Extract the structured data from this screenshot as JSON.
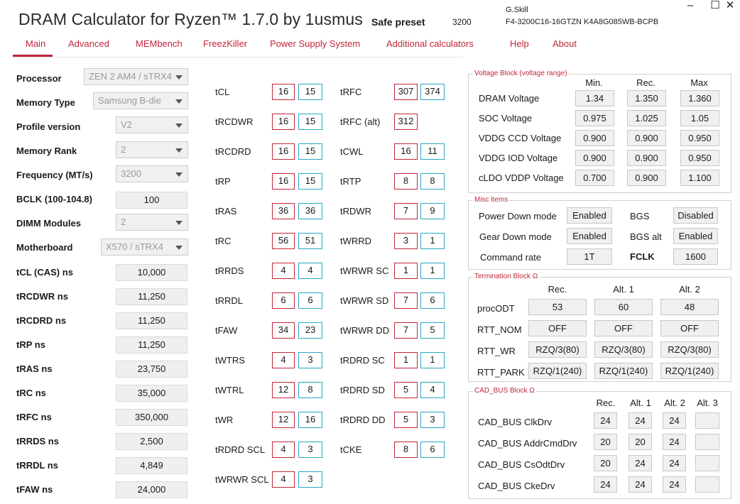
{
  "header": {
    "title": "DRAM Calculator for Ryzen™ 1.7.0 by 1usmus",
    "safe_label": "Safe preset",
    "safe_value": "3200",
    "brand": "G.Skill",
    "part": "F4-3200C16-16GTZN K4A8G085WB-BCPB",
    "minimize": "–",
    "maximize": "☐",
    "close": "✕"
  },
  "menu": [
    "Main",
    "Advanced",
    "MEMbench",
    "FreezKiller",
    "Power Supply System",
    "Additional calculators",
    "Help",
    "About"
  ],
  "left": {
    "processor": {
      "label": "Processor",
      "value": "ZEN 2 AM4 / sTRX4"
    },
    "memory_type": {
      "label": "Memory Type",
      "value": "Samsung B-die"
    },
    "profile": {
      "label": "Profile version",
      "value": "V2"
    },
    "rank": {
      "label": "Memory Rank",
      "value": "2"
    },
    "frequency": {
      "label": "Frequency (MT/s)",
      "value": "3200"
    },
    "bclk": {
      "label": "BCLK (100-104.8)",
      "value": "100"
    },
    "dimm": {
      "label": "DIMM Modules",
      "value": "2"
    },
    "motherboard": {
      "label": "Motherboard",
      "value": "X570 / sTRX4"
    },
    "ns": [
      {
        "label": "tCL (CAS) ns",
        "value": "10,000"
      },
      {
        "label": "tRCDWR ns",
        "value": "11,250"
      },
      {
        "label": "tRCDRD ns",
        "value": "11,250"
      },
      {
        "label": "tRP ns",
        "value": "11,250"
      },
      {
        "label": "tRAS ns",
        "value": "23,750"
      },
      {
        "label": "tRC ns",
        "value": "35,000"
      },
      {
        "label": "tRFC ns",
        "value": "350,000"
      },
      {
        "label": "tRRDS ns",
        "value": "2,500"
      },
      {
        "label": "tRRDL ns",
        "value": "4,849"
      },
      {
        "label": "tFAW ns",
        "value": "24,000"
      }
    ]
  },
  "timings_left": [
    {
      "label": "tCL",
      "a": "16",
      "b": "15"
    },
    {
      "label": "tRCDWR",
      "a": "16",
      "b": "15"
    },
    {
      "label": "tRCDRD",
      "a": "16",
      "b": "15"
    },
    {
      "label": "tRP",
      "a": "16",
      "b": "15"
    },
    {
      "label": "tRAS",
      "a": "36",
      "b": "36"
    },
    {
      "label": "tRC",
      "a": "56",
      "b": "51"
    },
    {
      "label": "tRRDS",
      "a": "4",
      "b": "4"
    },
    {
      "label": "tRRDL",
      "a": "6",
      "b": "6"
    },
    {
      "label": "tFAW",
      "a": "34",
      "b": "23"
    },
    {
      "label": "tWTRS",
      "a": "4",
      "b": "3"
    },
    {
      "label": "tWTRL",
      "a": "12",
      "b": "8"
    },
    {
      "label": "tWR",
      "a": "12",
      "b": "16"
    },
    {
      "label": "tRDRD SCL",
      "a": "4",
      "b": "3"
    },
    {
      "label": "tWRWR SCL",
      "a": "4",
      "b": "3"
    }
  ],
  "timings_right": [
    {
      "label": "tRFC",
      "a": "307",
      "b": "374"
    },
    {
      "label": "tRFC (alt)",
      "a": "312",
      "b": ""
    },
    {
      "label": "tCWL",
      "a": "16",
      "b": "11"
    },
    {
      "label": "tRTP",
      "a": "8",
      "b": "8"
    },
    {
      "label": "tRDWR",
      "a": "7",
      "b": "9"
    },
    {
      "label": "tWRRD",
      "a": "3",
      "b": "1"
    },
    {
      "label": "tWRWR SC",
      "a": "1",
      "b": "1"
    },
    {
      "label": "tWRWR SD",
      "a": "7",
      "b": "6"
    },
    {
      "label": "tWRWR DD",
      "a": "7",
      "b": "5"
    },
    {
      "label": "tRDRD SC",
      "a": "1",
      "b": "1"
    },
    {
      "label": "tRDRD SD",
      "a": "5",
      "b": "4"
    },
    {
      "label": "tRDRD DD",
      "a": "5",
      "b": "3"
    },
    {
      "label": "tCKE",
      "a": "8",
      "b": "6"
    }
  ],
  "voltage": {
    "title": "Voltage Block (voltage range)",
    "headers": [
      "Min.",
      "Rec.",
      "Max"
    ],
    "rows": [
      {
        "label": "DRAM Voltage",
        "min": "1.34",
        "rec": "1.350",
        "max": "1.360"
      },
      {
        "label": "SOC Voltage",
        "min": "0.975",
        "rec": "1.025",
        "max": "1.05"
      },
      {
        "label": "VDDG  CCD Voltage",
        "min": "0.900",
        "rec": "0.900",
        "max": "0.950"
      },
      {
        "label": "VDDG  IOD Voltage",
        "min": "0.900",
        "rec": "0.900",
        "max": "0.950"
      },
      {
        "label": "cLDO VDDP Voltage",
        "min": "0.700",
        "rec": "0.900",
        "max": "1.100"
      }
    ]
  },
  "misc": {
    "title": "Misc items",
    "power_down": {
      "label": "Power Down mode",
      "value": "Enabled"
    },
    "bgs": {
      "label": "BGS",
      "value": "Disabled"
    },
    "gear_down": {
      "label": "Gear Down mode",
      "value": "Enabled"
    },
    "bgs_alt": {
      "label": "BGS alt",
      "value": "Enabled"
    },
    "command_rate": {
      "label": "Command rate",
      "value": "1T"
    },
    "fclk": {
      "label": "FCLK",
      "value": "1600"
    }
  },
  "termination": {
    "title": "Termination Block Ω",
    "headers": [
      "Rec.",
      "Alt. 1",
      "Alt. 2"
    ],
    "rows": [
      {
        "label": "procODT",
        "v": [
          "53",
          "60",
          "48"
        ]
      },
      {
        "label": "RTT_NOM",
        "v": [
          "OFF",
          "OFF",
          "OFF"
        ]
      },
      {
        "label": "RTT_WR",
        "v": [
          "RZQ/3(80)",
          "RZQ/3(80)",
          "RZQ/3(80)"
        ]
      },
      {
        "label": "RTT_PARK",
        "v": [
          "RZQ/1(240)",
          "RZQ/1(240)",
          "RZQ/1(240)"
        ]
      }
    ]
  },
  "cadbus": {
    "title": "CAD_BUS Block Ω",
    "headers": [
      "Rec.",
      "Alt. 1",
      "Alt. 2",
      "Alt. 3"
    ],
    "rows": [
      {
        "label": "CAD_BUS ClkDrv",
        "v": [
          "24",
          "24",
          "24",
          ""
        ]
      },
      {
        "label": "CAD_BUS AddrCmdDrv",
        "v": [
          "20",
          "20",
          "24",
          ""
        ]
      },
      {
        "label": "CAD_BUS CsOdtDrv",
        "v": [
          "20",
          "24",
          "24",
          ""
        ]
      },
      {
        "label": "CAD_BUS CkeDrv",
        "v": [
          "24",
          "24",
          "24",
          ""
        ]
      }
    ]
  }
}
